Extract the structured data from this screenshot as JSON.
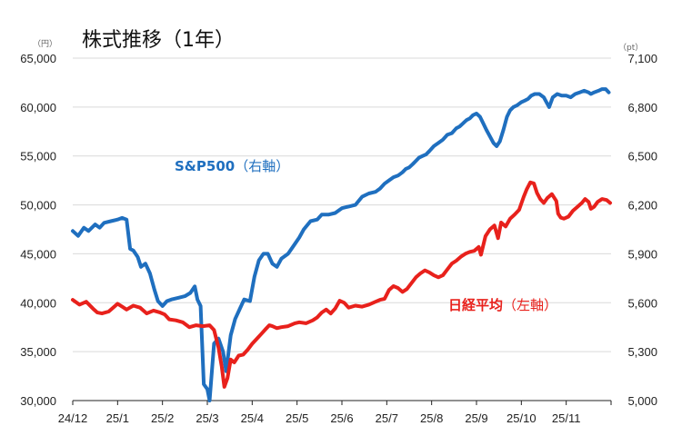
{
  "chart_data": {
    "type": "line",
    "title": "株式推移（1年）",
    "left_axis": {
      "unit": "（円）",
      "range": [
        30000,
        65000
      ],
      "ticks": [
        "30,000",
        "35,000",
        "40,000",
        "45,000",
        "50,000",
        "55,000",
        "60,000",
        "65,000"
      ]
    },
    "right_axis": {
      "unit": "（pt）",
      "range": [
        5000,
        7100
      ],
      "ticks": [
        "5,000",
        "5,300",
        "5,600",
        "5,900",
        "6,200",
        "6,500",
        "6,800",
        "7,100"
      ]
    },
    "x_ticks": [
      "24/12",
      "25/1",
      "25/2",
      "25/3",
      "25/4",
      "25/5",
      "25/6",
      "25/7",
      "25/8",
      "25/9",
      "25/10",
      "25/11"
    ],
    "grid": true,
    "series": [
      {
        "name": "S&P500",
        "label_sub": "（右軸）",
        "axis": "right",
        "color": "#1f6fbf",
        "points": [
          [
            0.0,
            6040
          ],
          [
            0.12,
            6010
          ],
          [
            0.25,
            6060
          ],
          [
            0.35,
            6040
          ],
          [
            0.5,
            6080
          ],
          [
            0.6,
            6060
          ],
          [
            0.7,
            6090
          ],
          [
            0.85,
            6100
          ],
          [
            1.0,
            6110
          ],
          [
            1.1,
            6120
          ],
          [
            1.2,
            6110
          ],
          [
            1.28,
            5930
          ],
          [
            1.35,
            5920
          ],
          [
            1.45,
            5880
          ],
          [
            1.52,
            5820
          ],
          [
            1.62,
            5840
          ],
          [
            1.72,
            5780
          ],
          [
            1.82,
            5680
          ],
          [
            1.9,
            5610
          ],
          [
            2.0,
            5580
          ],
          [
            2.1,
            5610
          ],
          [
            2.2,
            5620
          ],
          [
            2.35,
            5630
          ],
          [
            2.5,
            5640
          ],
          [
            2.62,
            5660
          ],
          [
            2.72,
            5700
          ],
          [
            2.78,
            5620
          ],
          [
            2.85,
            5580
          ],
          [
            2.92,
            5100
          ],
          [
            3.0,
            5070
          ],
          [
            3.05,
            5000
          ],
          [
            3.15,
            5350
          ],
          [
            3.25,
            5380
          ],
          [
            3.35,
            5300
          ],
          [
            3.42,
            5180
          ],
          [
            3.52,
            5400
          ],
          [
            3.62,
            5500
          ],
          [
            3.72,
            5560
          ],
          [
            3.82,
            5620
          ],
          [
            3.95,
            5610
          ],
          [
            4.05,
            5760
          ],
          [
            4.15,
            5860
          ],
          [
            4.25,
            5900
          ],
          [
            4.35,
            5900
          ],
          [
            4.45,
            5840
          ],
          [
            4.55,
            5820
          ],
          [
            4.65,
            5870
          ],
          [
            4.8,
            5900
          ],
          [
            4.95,
            5960
          ],
          [
            5.05,
            6000
          ],
          [
            5.15,
            6050
          ],
          [
            5.3,
            6100
          ],
          [
            5.45,
            6110
          ],
          [
            5.55,
            6140
          ],
          [
            5.7,
            6140
          ],
          [
            5.85,
            6150
          ],
          [
            6.0,
            6180
          ],
          [
            6.15,
            6190
          ],
          [
            6.3,
            6200
          ],
          [
            6.45,
            6250
          ],
          [
            6.6,
            6270
          ],
          [
            6.75,
            6280
          ],
          [
            6.85,
            6300
          ],
          [
            6.95,
            6330
          ],
          [
            7.05,
            6350
          ],
          [
            7.15,
            6370
          ],
          [
            7.25,
            6380
          ],
          [
            7.35,
            6400
          ],
          [
            7.42,
            6420
          ],
          [
            7.5,
            6430
          ],
          [
            7.58,
            6450
          ],
          [
            7.65,
            6470
          ],
          [
            7.72,
            6490
          ],
          [
            7.8,
            6500
          ],
          [
            7.88,
            6510
          ],
          [
            7.95,
            6530
          ],
          [
            8.05,
            6560
          ],
          [
            8.15,
            6580
          ],
          [
            8.25,
            6600
          ],
          [
            8.35,
            6630
          ],
          [
            8.45,
            6640
          ],
          [
            8.55,
            6670
          ],
          [
            8.62,
            6680
          ],
          [
            8.7,
            6700
          ],
          [
            8.78,
            6720
          ],
          [
            8.85,
            6730
          ],
          [
            8.92,
            6750
          ],
          [
            9.0,
            6760
          ],
          [
            9.08,
            6740
          ],
          [
            9.15,
            6700
          ],
          [
            9.22,
            6660
          ],
          [
            9.3,
            6620
          ],
          [
            9.38,
            6580
          ],
          [
            9.45,
            6560
          ],
          [
            9.52,
            6590
          ],
          [
            9.6,
            6660
          ],
          [
            9.68,
            6740
          ],
          [
            9.75,
            6780
          ],
          [
            9.82,
            6800
          ],
          [
            9.9,
            6810
          ],
          [
            10.0,
            6830
          ],
          [
            10.08,
            6840
          ],
          [
            10.15,
            6850
          ],
          [
            10.22,
            6870
          ],
          [
            10.3,
            6880
          ],
          [
            10.4,
            6880
          ],
          [
            10.5,
            6860
          ],
          [
            10.58,
            6820
          ],
          [
            10.62,
            6800
          ],
          [
            10.7,
            6860
          ],
          [
            10.8,
            6880
          ],
          [
            10.9,
            6870
          ],
          [
            11.0,
            6870
          ],
          [
            11.1,
            6860
          ],
          [
            11.2,
            6880
          ],
          [
            11.3,
            6890
          ],
          [
            11.4,
            6900
          ],
          [
            11.5,
            6890
          ],
          [
            11.55,
            6880
          ],
          [
            11.62,
            6890
          ],
          [
            11.72,
            6900
          ],
          [
            11.8,
            6910
          ],
          [
            11.88,
            6910
          ],
          [
            11.95,
            6890
          ]
        ]
      },
      {
        "name": "日経平均",
        "label_sub": "（左軸）",
        "axis": "left",
        "color": "#e8211c",
        "points": [
          [
            0.0,
            40300
          ],
          [
            0.15,
            39800
          ],
          [
            0.3,
            40100
          ],
          [
            0.45,
            39400
          ],
          [
            0.55,
            39000
          ],
          [
            0.65,
            38900
          ],
          [
            0.8,
            39100
          ],
          [
            0.9,
            39500
          ],
          [
            1.0,
            39900
          ],
          [
            1.1,
            39600
          ],
          [
            1.2,
            39300
          ],
          [
            1.35,
            39700
          ],
          [
            1.5,
            39500
          ],
          [
            1.65,
            38900
          ],
          [
            1.8,
            39200
          ],
          [
            1.95,
            39000
          ],
          [
            2.05,
            38800
          ],
          [
            2.15,
            38300
          ],
          [
            2.3,
            38200
          ],
          [
            2.45,
            38000
          ],
          [
            2.6,
            37500
          ],
          [
            2.75,
            37700
          ],
          [
            2.9,
            37600
          ],
          [
            3.05,
            37700
          ],
          [
            3.15,
            37200
          ],
          [
            3.25,
            35400
          ],
          [
            3.32,
            33500
          ],
          [
            3.38,
            31400
          ],
          [
            3.45,
            32300
          ],
          [
            3.52,
            34200
          ],
          [
            3.6,
            33900
          ],
          [
            3.7,
            34600
          ],
          [
            3.8,
            34700
          ],
          [
            3.9,
            35200
          ],
          [
            4.0,
            35800
          ],
          [
            4.1,
            36300
          ],
          [
            4.2,
            36800
          ],
          [
            4.3,
            37300
          ],
          [
            4.38,
            37700
          ],
          [
            4.45,
            37600
          ],
          [
            4.55,
            37400
          ],
          [
            4.65,
            37500
          ],
          [
            4.8,
            37600
          ],
          [
            4.95,
            37900
          ],
          [
            5.05,
            38000
          ],
          [
            5.2,
            37900
          ],
          [
            5.35,
            38200
          ],
          [
            5.45,
            38500
          ],
          [
            5.55,
            39000
          ],
          [
            5.65,
            39300
          ],
          [
            5.75,
            38900
          ],
          [
            5.85,
            39400
          ],
          [
            5.95,
            40200
          ],
          [
            6.05,
            40000
          ],
          [
            6.15,
            39500
          ],
          [
            6.3,
            39700
          ],
          [
            6.45,
            39600
          ],
          [
            6.6,
            39800
          ],
          [
            6.75,
            40100
          ],
          [
            6.85,
            40300
          ],
          [
            6.95,
            40400
          ],
          [
            7.05,
            41300
          ],
          [
            7.15,
            41700
          ],
          [
            7.25,
            41500
          ],
          [
            7.35,
            41100
          ],
          [
            7.45,
            41400
          ],
          [
            7.55,
            42000
          ],
          [
            7.65,
            42600
          ],
          [
            7.75,
            43000
          ],
          [
            7.85,
            43300
          ],
          [
            7.95,
            43100
          ],
          [
            8.05,
            42800
          ],
          [
            8.15,
            42600
          ],
          [
            8.25,
            42800
          ],
          [
            8.35,
            43400
          ],
          [
            8.45,
            44000
          ],
          [
            8.55,
            44300
          ],
          [
            8.65,
            44700
          ],
          [
            8.75,
            45000
          ],
          [
            8.85,
            45200
          ],
          [
            8.95,
            45300
          ],
          [
            9.05,
            45700
          ],
          [
            9.1,
            44900
          ],
          [
            9.2,
            46800
          ],
          [
            9.3,
            47500
          ],
          [
            9.4,
            47900
          ],
          [
            9.48,
            46600
          ],
          [
            9.55,
            48200
          ],
          [
            9.65,
            47800
          ],
          [
            9.75,
            48600
          ],
          [
            9.85,
            49000
          ],
          [
            9.95,
            49500
          ],
          [
            10.05,
            50800
          ],
          [
            10.12,
            51600
          ],
          [
            10.2,
            52300
          ],
          [
            10.28,
            52200
          ],
          [
            10.35,
            51200
          ],
          [
            10.42,
            50600
          ],
          [
            10.5,
            50200
          ],
          [
            10.58,
            50700
          ],
          [
            10.68,
            51100
          ],
          [
            10.78,
            50400
          ],
          [
            10.82,
            49100
          ],
          [
            10.88,
            48700
          ],
          [
            10.95,
            48600
          ],
          [
            11.05,
            48800
          ],
          [
            11.15,
            49400
          ],
          [
            11.25,
            49800
          ],
          [
            11.35,
            50200
          ],
          [
            11.42,
            50600
          ],
          [
            11.5,
            50300
          ],
          [
            11.55,
            49600
          ],
          [
            11.62,
            49800
          ],
          [
            11.7,
            50300
          ],
          [
            11.8,
            50600
          ],
          [
            11.9,
            50500
          ],
          [
            11.98,
            50200
          ]
        ]
      }
    ]
  }
}
